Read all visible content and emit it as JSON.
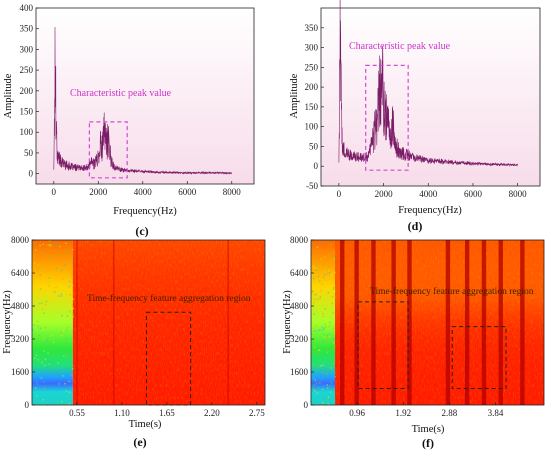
{
  "chart_data": [
    {
      "id": "c",
      "type": "line",
      "panel_label": "(c)",
      "xlabel": "Frequency(Hz)",
      "ylabel": "Amplitude",
      "xlim": [
        -800,
        9000
      ],
      "ylim": [
        -25,
        400
      ],
      "xticks": [
        0,
        2000,
        4000,
        6000,
        8000
      ],
      "yticks": [
        0,
        50,
        100,
        150,
        200,
        250,
        300,
        350,
        400
      ],
      "annotation": "Characteristic peak value",
      "annotation_box": {
        "x": [
          1600,
          3300
        ],
        "y": [
          -10,
          125
        ]
      },
      "series": [
        {
          "x": [
            0,
            60,
            150,
            300,
            500,
            700,
            900,
            1100,
            1300,
            1500,
            1600,
            1700,
            1800,
            1900,
            2000,
            2050,
            2100,
            2150,
            2200,
            2250,
            2300,
            2350,
            2400,
            2450,
            2500,
            2600,
            2700,
            2800,
            3000,
            3200,
            3500,
            4000,
            5000,
            6000,
            7000,
            8000
          ],
          "y": [
            12,
            265,
            45,
            30,
            22,
            18,
            15,
            14,
            13,
            14,
            20,
            28,
            25,
            30,
            40,
            60,
            78,
            55,
            70,
            95,
            112,
            80,
            70,
            90,
            55,
            30,
            16,
            14,
            10,
            8,
            7,
            5,
            3,
            2,
            2,
            1
          ]
        }
      ],
      "background": "#fbeef5",
      "line_color": "#7a1c66"
    },
    {
      "id": "d",
      "type": "line",
      "panel_label": "(d)",
      "xlabel": "Frequency(Hz)",
      "ylabel": "Amplitude",
      "xlim": [
        -800,
        9000
      ],
      "ylim": [
        -50,
        400
      ],
      "xticks": [
        0,
        2000,
        4000,
        6000,
        8000
      ],
      "yticks": [
        -50,
        0,
        50,
        100,
        150,
        200,
        250,
        300,
        350
      ],
      "annotation": "Characteristic peak value",
      "annotation_box": {
        "x": [
          1200,
          3100
        ],
        "y": [
          -10,
          255
        ]
      },
      "series": [
        {
          "x": [
            0,
            60,
            150,
            300,
            500,
            700,
            900,
            1100,
            1300,
            1400,
            1500,
            1600,
            1700,
            1750,
            1800,
            1850,
            1900,
            1950,
            2000,
            2050,
            2100,
            2200,
            2300,
            2400,
            2500,
            2600,
            2800,
            3000,
            3200,
            3500,
            4000,
            5000,
            6000,
            7000,
            8000
          ],
          "y": [
            12,
            335,
            60,
            35,
            28,
            24,
            22,
            22,
            25,
            40,
            60,
            90,
            110,
            140,
            180,
            230,
            160,
            210,
            185,
            120,
            150,
            100,
            80,
            110,
            70,
            50,
            35,
            30,
            25,
            20,
            15,
            10,
            7,
            5,
            3
          ]
        }
      ],
      "background": "#fbeef5",
      "line_color": "#7a1c66"
    },
    {
      "id": "e",
      "type": "heatmap",
      "panel_label": "(e)",
      "xlabel": "Time(s)",
      "ylabel": "Frequency(Hz)",
      "xlim": [
        0,
        2.85
      ],
      "ylim": [
        0,
        8000
      ],
      "xticks": [
        0.55,
        1.1,
        1.65,
        2.2,
        2.75
      ],
      "xtick_labels": [
        "0.55",
        "1.10",
        "1.65",
        "2.20",
        "2.75"
      ],
      "yticks": [
        0,
        1600,
        3200,
        4800,
        6400,
        8000
      ],
      "annotation": "Time-frequency feature aggregation region",
      "annotation_box": {
        "x": [
          1.4,
          1.94
        ],
        "y": [
          0,
          4500
        ]
      },
      "low_segment_end": 0.5
    },
    {
      "id": "f",
      "type": "heatmap",
      "panel_label": "(f)",
      "xlabel": "Time(s)",
      "ylabel": "Frequency(Hz)",
      "xlim": [
        0,
        4.85
      ],
      "ylim": [
        0,
        8000
      ],
      "xticks": [
        0.96,
        1.92,
        2.88,
        3.84
      ],
      "xtick_labels": [
        "0.96",
        "1.92",
        "2.88",
        "3.84"
      ],
      "yticks": [
        0,
        1600,
        3200,
        4800,
        6400,
        8000
      ],
      "annotation": "Time-frequency feature aggregation region",
      "annotation_boxes": [
        {
          "x": [
            0.98,
            2.02
          ],
          "y": [
            800,
            5000
          ]
        },
        {
          "x": [
            2.94,
            4.06
          ],
          "y": [
            800,
            3800
          ]
        }
      ],
      "low_segment_end": 0.5,
      "streak_times": [
        0.65,
        0.95,
        1.3,
        1.72,
        2.05,
        2.85,
        3.25,
        3.6,
        3.95,
        4.4
      ]
    }
  ]
}
